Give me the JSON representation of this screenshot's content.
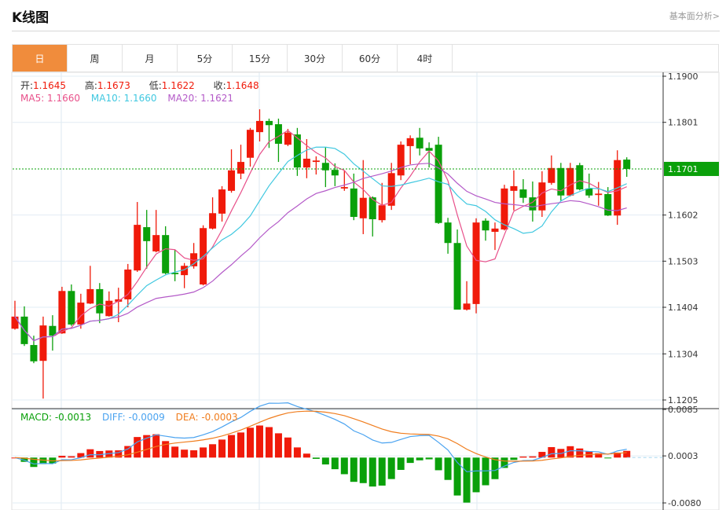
{
  "header": {
    "title": "K线图",
    "analysis_link": "基本面分析>"
  },
  "tabs": [
    {
      "label": "日",
      "active": true
    },
    {
      "label": "周"
    },
    {
      "label": "月"
    },
    {
      "label": "5分"
    },
    {
      "label": "15分"
    },
    {
      "label": "30分"
    },
    {
      "label": "60分"
    },
    {
      "label": "4时"
    }
  ],
  "ohlc_legend": {
    "open_label": "开:",
    "open": "1.1645",
    "high_label": "高:",
    "high": "1.1673",
    "low_label": "低:",
    "low": "1.1622",
    "close_label": "收:",
    "close": "1.1648"
  },
  "ma_legend": {
    "ma5": "MA5: 1.1660",
    "ma10": "MA10: 1.1660",
    "ma20": "MA20: 1.1621"
  },
  "macd_legend": {
    "macd": "MACD: -0.0013",
    "diff": "DIFF: -0.0009",
    "dea": "DEA: -0.0003"
  },
  "colors": {
    "up": "#f01a0a",
    "down": "#0aa00a",
    "ma5": "#e8508a",
    "ma10": "#40c8e0",
    "ma20": "#b45ac8",
    "diff": "#4aa3f0",
    "dea": "#f07d1e",
    "accent": "#f08c3c",
    "current_price": "#0aa00a"
  },
  "chart_data": {
    "type": "candlestick",
    "price_axis": {
      "ticks": [
        "1.1900",
        "1.1801",
        "1.1602",
        "1.1503",
        "1.1404",
        "1.1304",
        "1.1205"
      ],
      "range": [
        1.1205,
        1.19
      ]
    },
    "current_price": "1.1701",
    "macd_axis": {
      "ticks": [
        "0.0085",
        "0.0003",
        "-0.0080"
      ],
      "range": [
        -0.008,
        0.0085
      ]
    },
    "candles": [
      [
        1.1358,
        1.1418,
        1.1356,
        1.1384
      ],
      [
        1.1384,
        1.1406,
        1.1321,
        1.1325
      ],
      [
        1.1323,
        1.1343,
        1.1284,
        1.1288
      ],
      [
        1.1289,
        1.1384,
        1.1208,
        1.1365
      ],
      [
        1.1364,
        1.1387,
        1.1311,
        1.1343
      ],
      [
        1.1348,
        1.1448,
        1.1347,
        1.1439
      ],
      [
        1.1439,
        1.1453,
        1.1364,
        1.1367
      ],
      [
        1.1367,
        1.1433,
        1.1358,
        1.1414
      ],
      [
        1.1412,
        1.1493,
        1.1411,
        1.1443
      ],
      [
        1.1443,
        1.1456,
        1.137,
        1.1391
      ],
      [
        1.1385,
        1.1438,
        1.1384,
        1.1418
      ],
      [
        1.1416,
        1.1446,
        1.1372,
        1.1421
      ],
      [
        1.1421,
        1.1497,
        1.1404,
        1.1485
      ],
      [
        1.1483,
        1.163,
        1.148,
        1.1581
      ],
      [
        1.1576,
        1.1613,
        1.1487,
        1.1546
      ],
      [
        1.1524,
        1.1613,
        1.1522,
        1.1559
      ],
      [
        1.1559,
        1.1578,
        1.1475,
        1.1477
      ],
      [
        1.1478,
        1.1527,
        1.146,
        1.1475
      ],
      [
        1.1473,
        1.1499,
        1.1445,
        1.1493
      ],
      [
        1.1492,
        1.1542,
        1.1487,
        1.152
      ],
      [
        1.1453,
        1.158,
        1.1451,
        1.1574
      ],
      [
        1.1573,
        1.164,
        1.1571,
        1.1606
      ],
      [
        1.1605,
        1.1664,
        1.1588,
        1.1657
      ],
      [
        1.1654,
        1.1743,
        1.165,
        1.1698
      ],
      [
        1.1691,
        1.1753,
        1.1679,
        1.1716
      ],
      [
        1.1725,
        1.1789,
        1.1706,
        1.1785
      ],
      [
        1.178,
        1.1829,
        1.176,
        1.1804
      ],
      [
        1.1804,
        1.1809,
        1.1746,
        1.1795
      ],
      [
        1.1797,
        1.1809,
        1.1716,
        1.1755
      ],
      [
        1.1753,
        1.1787,
        1.175,
        1.1779
      ],
      [
        1.1775,
        1.1789,
        1.1686,
        1.1704
      ],
      [
        1.1704,
        1.1765,
        1.1681,
        1.1723
      ],
      [
        1.1716,
        1.1728,
        1.1689,
        1.1719
      ],
      [
        1.1714,
        1.1748,
        1.1662,
        1.1698
      ],
      [
        1.1699,
        1.1713,
        1.1664,
        1.1687
      ],
      [
        1.1659,
        1.1698,
        1.1654,
        1.1662
      ],
      [
        1.1659,
        1.1691,
        1.1591,
        1.1598
      ],
      [
        1.1595,
        1.172,
        1.1561,
        1.1639
      ],
      [
        1.164,
        1.1642,
        1.1556,
        1.1593
      ],
      [
        1.1591,
        1.1671,
        1.1586,
        1.1623
      ],
      [
        1.1622,
        1.1714,
        1.1613,
        1.1692
      ],
      [
        1.1687,
        1.176,
        1.1677,
        1.1753
      ],
      [
        1.175,
        1.1773,
        1.1711,
        1.1767
      ],
      [
        1.1768,
        1.1789,
        1.173,
        1.1745
      ],
      [
        1.1746,
        1.1758,
        1.1704,
        1.174
      ],
      [
        1.1753,
        1.177,
        1.1583,
        1.1585
      ],
      [
        1.1586,
        1.1596,
        1.1519,
        1.1542
      ],
      [
        1.1542,
        1.1571,
        1.1399,
        1.1399
      ],
      [
        1.1399,
        1.146,
        1.1397,
        1.1412
      ],
      [
        1.1411,
        1.1595,
        1.1391,
        1.1586
      ],
      [
        1.159,
        1.1595,
        1.1547,
        1.1569
      ],
      [
        1.1566,
        1.1586,
        1.1527,
        1.1573
      ],
      [
        1.1571,
        1.1667,
        1.1569,
        1.1659
      ],
      [
        1.1654,
        1.1698,
        1.1612,
        1.1664
      ],
      [
        1.1657,
        1.1679,
        1.1628,
        1.1639
      ],
      [
        1.164,
        1.1674,
        1.1588,
        1.1612
      ],
      [
        1.1612,
        1.1696,
        1.1598,
        1.1672
      ],
      [
        1.1671,
        1.173,
        1.1667,
        1.1703
      ],
      [
        1.1703,
        1.1714,
        1.1633,
        1.1644
      ],
      [
        1.1644,
        1.1714,
        1.1642,
        1.1703
      ],
      [
        1.1709,
        1.1714,
        1.1655,
        1.1657
      ],
      [
        1.1659,
        1.1691,
        1.1639,
        1.1644
      ],
      [
        1.1645,
        1.1673,
        1.1622,
        1.1648
      ],
      [
        1.1647,
        1.1662,
        1.16,
        1.1601
      ],
      [
        1.1601,
        1.1741,
        1.1581,
        1.172
      ],
      [
        1.1721,
        1.1726,
        1.1684,
        1.1701
      ]
    ],
    "ma_periods": [
      5,
      10,
      20
    ],
    "macd_params": [
      12,
      26,
      9
    ]
  }
}
